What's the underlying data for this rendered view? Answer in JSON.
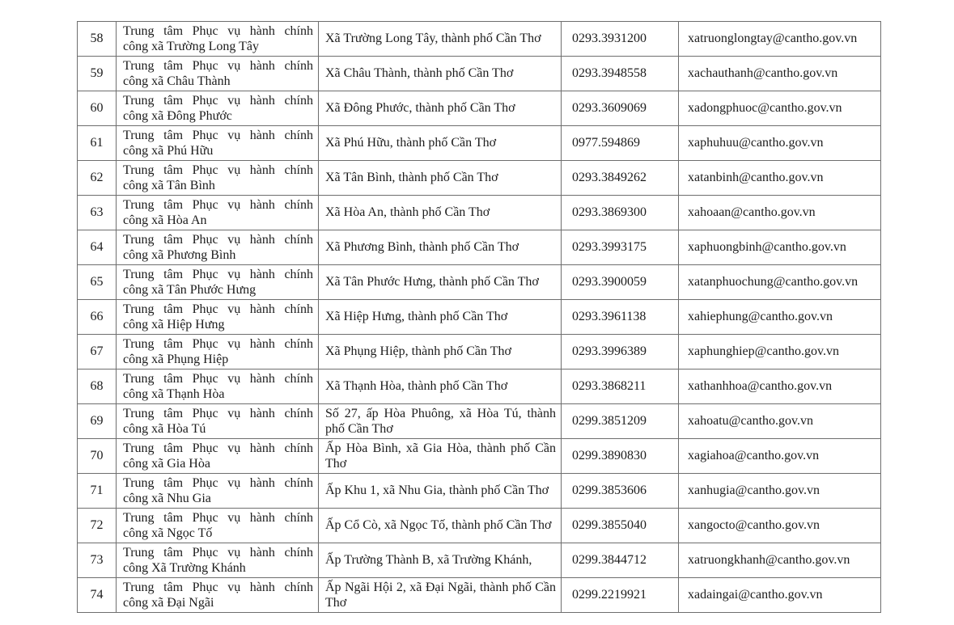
{
  "colors": {
    "page_background": "#ffffff",
    "table_border": "#6e6e6e",
    "text": "#1c1c1c"
  },
  "table": {
    "columns": [
      "row-number",
      "center-name",
      "address",
      "phone",
      "email"
    ],
    "rows": [
      {
        "no": "58",
        "name_lines": [
          "Trung tâm Phục vụ hành chính",
          "công xã Trường Long Tây"
        ],
        "address_lines": [
          "Xã Trường Long Tây, thành phố Cần Thơ"
        ],
        "phone": "0293.3931200",
        "email": "xatruonglongtay@cantho.gov.vn"
      },
      {
        "no": "59",
        "name_lines": [
          "Trung tâm Phục vụ hành chính",
          "công xã Châu Thành"
        ],
        "address_lines": [
          "Xã Châu Thành, thành phố Cần Thơ"
        ],
        "phone": "0293.3948558",
        "email": "xachauthanh@cantho.gov.vn"
      },
      {
        "no": "60",
        "name_lines": [
          "Trung tâm Phục vụ hành chính",
          "công xã Đông Phước"
        ],
        "address_lines": [
          "Xã Đông Phước, thành phố Cần Thơ"
        ],
        "phone": "0293.3609069",
        "email": "xadongphuoc@cantho.gov.vn"
      },
      {
        "no": "61",
        "name_lines": [
          "Trung tâm Phục vụ hành chính",
          "công xã Phú Hữu"
        ],
        "address_lines": [
          "Xã Phú Hữu, thành phố Cần Thơ"
        ],
        "phone": "0977.594869",
        "email": "xaphuhuu@cantho.gov.vn"
      },
      {
        "no": "62",
        "name_lines": [
          "Trung tâm Phục vụ hành chính",
          "công xã Tân Bình"
        ],
        "address_lines": [
          "Xã Tân Bình, thành phố Cần Thơ"
        ],
        "phone": "0293.3849262",
        "email": "xatanbinh@cantho.gov.vn"
      },
      {
        "no": "63",
        "name_lines": [
          "Trung tâm Phục vụ hành chính",
          "công xã Hòa An"
        ],
        "address_lines": [
          "Xã Hòa An, thành phố Cần Thơ"
        ],
        "phone": "0293.3869300",
        "email": "xahoaan@cantho.gov.vn"
      },
      {
        "no": "64",
        "name_lines": [
          "Trung tâm Phục vụ hành chính",
          "công xã Phương Bình"
        ],
        "address_lines": [
          "Xã Phương Bình, thành phố Cần Thơ"
        ],
        "phone": "0293.3993175",
        "email": "xaphuongbinh@cantho.gov.vn"
      },
      {
        "no": "65",
        "name_lines": [
          "Trung tâm Phục vụ hành chính",
          "công xã Tân Phước Hưng"
        ],
        "address_lines": [
          "Xã Tân Phước Hưng, thành phố Cần Thơ"
        ],
        "phone": "0293.3900059",
        "email": "xatanphuochung@cantho.gov.vn"
      },
      {
        "no": "66",
        "name_lines": [
          "Trung tâm Phục vụ hành chính",
          "công xã Hiệp Hưng"
        ],
        "address_lines": [
          "Xã Hiệp Hưng, thành phố Cần Thơ"
        ],
        "phone": "0293.3961138",
        "email": "xahiephung@cantho.gov.vn"
      },
      {
        "no": "67",
        "name_lines": [
          "Trung tâm Phục vụ hành chính",
          "công xã Phụng Hiệp"
        ],
        "address_lines": [
          "Xã Phụng Hiệp, thành phố Cần Thơ"
        ],
        "phone": "0293.3996389",
        "email": "xaphunghiep@cantho.gov.vn"
      },
      {
        "no": "68",
        "name_lines": [
          "Trung tâm Phục vụ hành chính",
          "công xã Thạnh Hòa"
        ],
        "address_lines": [
          "Xã Thạnh Hòa, thành phố Cần Thơ"
        ],
        "phone": "0293.3868211",
        "email": "xathanhhoa@cantho.gov.vn"
      },
      {
        "no": "69",
        "name_lines": [
          "Trung tâm Phục vụ hành chính",
          "công xã Hòa Tú"
        ],
        "address_lines": [
          "Số 27, ấp Hòa Phuông, xã Hòa Tú, thành",
          "phố Cần Thơ"
        ],
        "phone": "0299.3851209",
        "email": "xahoatu@cantho.gov.vn"
      },
      {
        "no": "70",
        "name_lines": [
          "Trung tâm Phục vụ hành chính",
          "công xã Gia Hòa"
        ],
        "address_lines": [
          "Ấp Hòa Bình, xã Gia Hòa, thành phố Cần",
          "Thơ"
        ],
        "phone": "0299.3890830",
        "email": "xagiahoa@cantho.gov.vn"
      },
      {
        "no": "71",
        "name_lines": [
          "Trung tâm Phục vụ hành chính",
          "công xã Nhu Gia"
        ],
        "address_lines": [
          "Ấp Khu 1, xã Nhu Gia, thành phố Cần Thơ"
        ],
        "phone": "0299.3853606",
        "email": "xanhugia@cantho.gov.vn"
      },
      {
        "no": "72",
        "name_lines": [
          "Trung tâm Phục vụ hành chính",
          "công xã Ngọc Tố"
        ],
        "address_lines": [
          "Ấp Cổ Cò, xã Ngọc Tố, thành phố Cần Thơ"
        ],
        "phone": "0299.3855040",
        "email": "xangocto@cantho.gov.vn"
      },
      {
        "no": "73",
        "name_lines": [
          "Trung tâm Phục vụ hành chính",
          "công Xã Trường Khánh"
        ],
        "address_lines": [
          "Ấp Trường Thành B, xã Trường Khánh,"
        ],
        "phone": "0299.3844712",
        "email": "xatruongkhanh@cantho.gov.vn"
      },
      {
        "no": "74",
        "name_lines": [
          "Trung tâm Phục vụ hành chính",
          "công xã Đại Ngãi"
        ],
        "address_lines": [
          "Ấp Ngãi Hội 2, xã Đại Ngãi, thành phố Cần",
          "Thơ"
        ],
        "phone": "0299.2219921",
        "email": "xadaingai@cantho.gov.vn"
      }
    ]
  }
}
